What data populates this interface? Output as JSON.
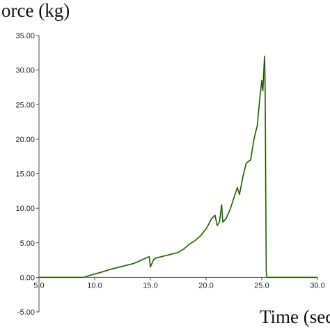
{
  "chart_data": {
    "type": "line",
    "title": "",
    "ylabel": "orce (kg)",
    "xlabel": "Time (sec",
    "xlim": [
      5.0,
      30.0
    ],
    "ylim": [
      -5.0,
      35.0
    ],
    "x_ticks": [
      "5.0",
      "10.0",
      "15.0",
      "20.0",
      "25.0",
      "30.0"
    ],
    "x_tick_values": [
      5,
      10,
      15,
      20,
      25,
      30
    ],
    "y_ticks": [
      "-5.00",
      "0.00",
      "5.00",
      "10.00",
      "15.00",
      "20.00",
      "25.00",
      "30.00",
      "35.00"
    ],
    "y_tick_values": [
      -5,
      0,
      5,
      10,
      15,
      20,
      25,
      30,
      35
    ],
    "grid": false,
    "colors": {
      "trace_dark": "#1f3a1f",
      "trace_light": "#6fbf3a",
      "axis": "#4a4a4a"
    },
    "series": [
      {
        "x": [
          5.0,
          9.0,
          9.6,
          10.5,
          11.5,
          12.5,
          13.5,
          14.2,
          14.9,
          15.0,
          15.3,
          15.5,
          16.5,
          17.5,
          18.0,
          18.5,
          19.0,
          19.5,
          20.0,
          20.5,
          20.8,
          21.0,
          21.2,
          21.4,
          21.5,
          21.8,
          22.2,
          22.5,
          22.8,
          23.0,
          23.3,
          23.6,
          24.0,
          24.3,
          24.6,
          24.8,
          25.0,
          25.1,
          25.2,
          25.25,
          25.3,
          25.4,
          25.45,
          25.5,
          26.0,
          30.0
        ],
        "y": [
          0.0,
          0.0,
          0.3,
          0.7,
          1.2,
          1.6,
          2.0,
          2.5,
          3.0,
          1.5,
          2.6,
          2.8,
          3.2,
          3.6,
          4.1,
          4.8,
          5.3,
          6.0,
          7.0,
          8.5,
          9.0,
          7.5,
          8.0,
          10.5,
          8.0,
          8.5,
          10.0,
          11.5,
          13.0,
          12.0,
          14.5,
          16.5,
          17.0,
          20.0,
          22.0,
          25.5,
          28.5,
          27.0,
          30.5,
          32.0,
          28.0,
          1.0,
          0.0,
          0.0,
          0.0,
          0.0
        ]
      }
    ]
  }
}
